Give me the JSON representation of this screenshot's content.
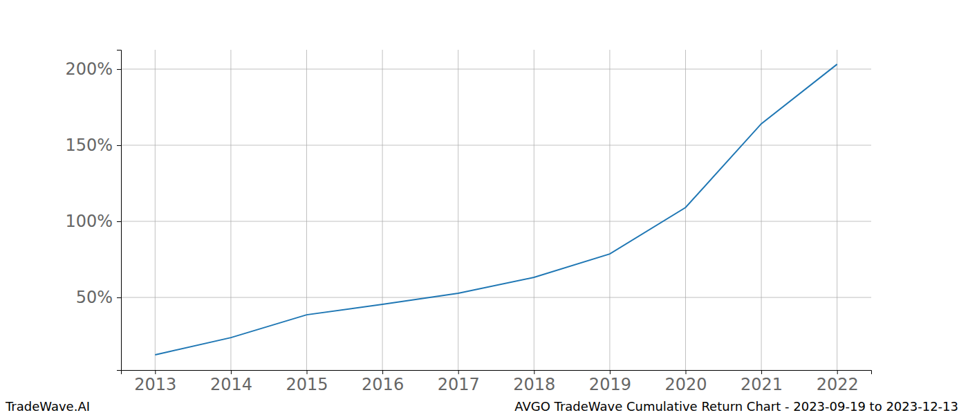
{
  "chart_data": {
    "type": "line",
    "title": "AVGO TradeWave Cumulative Return Chart - 2023-09-19 to 2023-12-13",
    "watermark": "TradeWave.AI",
    "x": [
      2013,
      2014,
      2015,
      2016,
      2017,
      2018,
      2019,
      2020,
      2021,
      2022
    ],
    "series": [
      {
        "name": "AVGO",
        "color": "#1f77b4",
        "values": [
          12.3,
          23.6,
          38.6,
          45.5,
          52.7,
          63.2,
          78.6,
          109.1,
          164.1,
          203.2
        ]
      }
    ],
    "xlim": [
      2012.55,
      2022.45
    ],
    "xticks": [
      2013,
      2014,
      2015,
      2016,
      2017,
      2018,
      2019,
      2020,
      2021,
      2022
    ],
    "ylim": [
      2.3,
      212.7
    ],
    "yticks": [
      {
        "value": 50,
        "label": "50%"
      },
      {
        "value": 100,
        "label": "100%"
      },
      {
        "value": 150,
        "label": "150%"
      },
      {
        "value": 200,
        "label": "200%"
      }
    ],
    "grid": true
  }
}
